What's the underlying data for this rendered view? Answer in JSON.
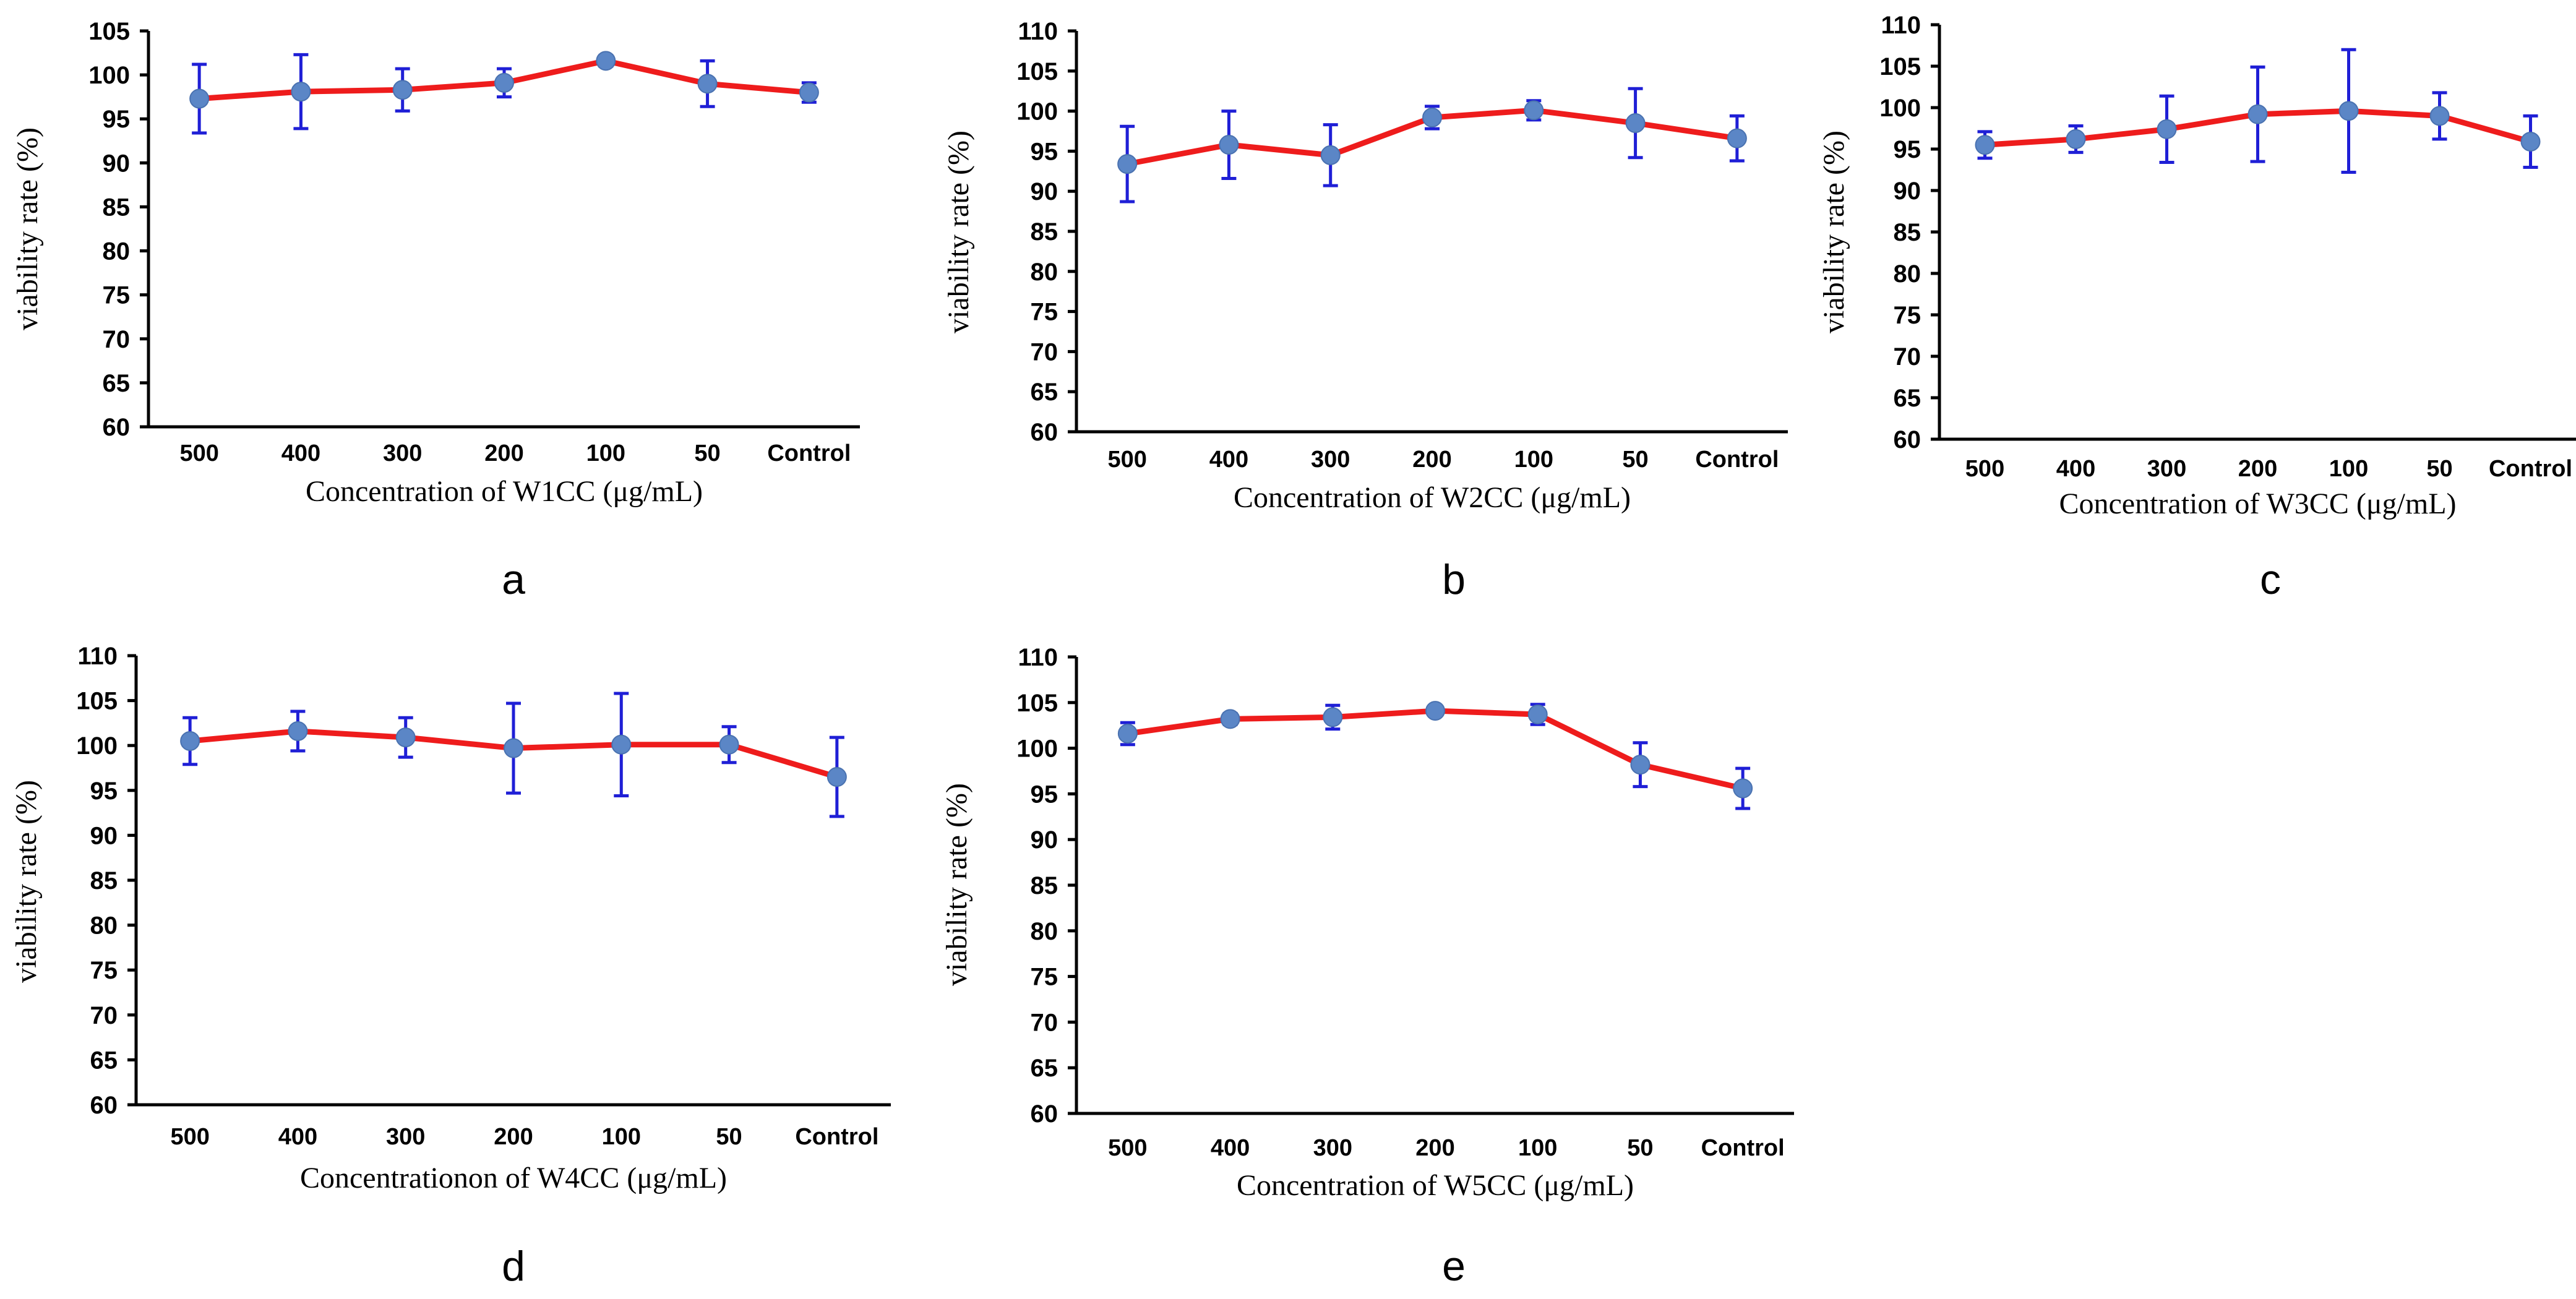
{
  "chart_data": [
    {
      "id": "a",
      "type": "line",
      "panel_label": "a",
      "categories": [
        "500",
        "400",
        "300",
        "200",
        "100",
        "50",
        "Control"
      ],
      "series": [
        {
          "name": "W1CC",
          "values": [
            97.3,
            98.1,
            98.3,
            99.1,
            101.6,
            99.0,
            98.0
          ],
          "errors": [
            3.9,
            4.2,
            2.4,
            1.6,
            0.6,
            2.6,
            1.1
          ]
        }
      ],
      "xlabel": "Concentration of W1CC (μg/mL)",
      "ylabel": "viability rate (%)",
      "ylim": [
        60,
        105
      ],
      "yticks": [
        60,
        65,
        70,
        75,
        80,
        85,
        90,
        95,
        100,
        105
      ],
      "colors": {
        "line": "#ee1c1c",
        "marker": "#5b86c6",
        "error": "#1f1fd6"
      }
    },
    {
      "id": "b",
      "type": "line",
      "panel_label": "b",
      "categories": [
        "500",
        "400",
        "300",
        "200",
        "100",
        "50",
        "Control"
      ],
      "series": [
        {
          "name": "W2CC",
          "values": [
            93.4,
            95.8,
            94.5,
            99.2,
            100.1,
            98.5,
            96.6
          ],
          "errors": [
            4.7,
            4.2,
            3.8,
            1.4,
            1.2,
            4.3,
            2.8
          ]
        }
      ],
      "xlabel": "Concentration of W2CC (μg/mL)",
      "ylabel": "viability rate (%)",
      "ylim": [
        60,
        110
      ],
      "yticks": [
        60,
        65,
        70,
        75,
        80,
        85,
        90,
        95,
        100,
        105,
        110
      ],
      "colors": {
        "line": "#ee1c1c",
        "marker": "#5b86c6",
        "error": "#1f1fd6"
      }
    },
    {
      "id": "c",
      "type": "line",
      "panel_label": "c",
      "categories": [
        "500",
        "400",
        "300",
        "200",
        "100",
        "50",
        "Control"
      ],
      "series": [
        {
          "name": "W3CC",
          "values": [
            95.5,
            96.2,
            97.4,
            99.2,
            99.6,
            99.0,
            95.9
          ],
          "errors": [
            1.6,
            1.6,
            4.0,
            5.7,
            7.4,
            2.8,
            3.1
          ]
        }
      ],
      "xlabel": "Concentration of W3CC (μg/mL)",
      "ylabel": "viability rate (%)",
      "ylim": [
        60,
        110
      ],
      "yticks": [
        60,
        65,
        70,
        75,
        80,
        85,
        90,
        95,
        100,
        105,
        110
      ],
      "colors": {
        "line": "#ee1c1c",
        "marker": "#5b86c6",
        "error": "#1f1fd6"
      }
    },
    {
      "id": "d",
      "type": "line",
      "panel_label": "d",
      "categories": [
        "500",
        "400",
        "300",
        "200",
        "100",
        "50",
        "Control"
      ],
      "series": [
        {
          "name": "W4CC",
          "values": [
            100.5,
            101.6,
            100.9,
            99.7,
            100.1,
            100.1,
            96.5
          ],
          "errors": [
            2.6,
            2.2,
            2.2,
            5.0,
            5.7,
            2.0,
            4.4
          ]
        }
      ],
      "xlabel": "Concentrationon of W4CC (μg/mL)",
      "ylabel": "viability rate (%)",
      "ylim": [
        60,
        110
      ],
      "yticks": [
        60,
        65,
        70,
        75,
        80,
        85,
        90,
        95,
        100,
        105,
        110
      ],
      "colors": {
        "line": "#ee1c1c",
        "marker": "#5b86c6",
        "error": "#1f1fd6"
      }
    },
    {
      "id": "e",
      "type": "line",
      "panel_label": "e",
      "categories": [
        "500",
        "400",
        "300",
        "200",
        "100",
        "50",
        "Control"
      ],
      "series": [
        {
          "name": "W5CC",
          "values": [
            101.6,
            103.2,
            103.4,
            104.1,
            103.7,
            98.2,
            95.6
          ],
          "errors": [
            1.2,
            0.6,
            1.3,
            0.5,
            1.1,
            2.4,
            2.2
          ]
        }
      ],
      "xlabel": "Concentration of W5CC (μg/mL)",
      "ylabel": "viability rate (%)",
      "ylim": [
        60,
        110
      ],
      "yticks": [
        60,
        65,
        70,
        75,
        80,
        85,
        90,
        95,
        100,
        105,
        110
      ],
      "colors": {
        "line": "#ee1c1c",
        "marker": "#5b86c6",
        "error": "#1f1fd6"
      }
    }
  ]
}
